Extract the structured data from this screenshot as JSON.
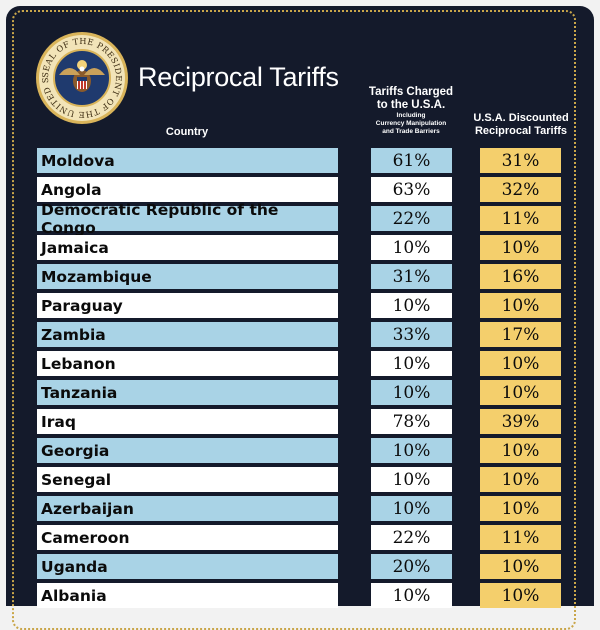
{
  "title": "Reciprocal Tariffs",
  "seal": {
    "text": "SEAL OF THE PRESIDENT OF THE UNITED STATES"
  },
  "headers": {
    "country": "Country",
    "charged_line1": "Tariffs Charged",
    "charged_line2": "to the U.S.A.",
    "charged_note1": "Including",
    "charged_note2": "Currency Manipulation",
    "charged_note3": "and Trade Barriers",
    "discounted_line1": "U.S.A. Discounted",
    "discounted_line2": "Reciprocal Tariffs"
  },
  "colors": {
    "background": "#141a2b",
    "row_blue": "#a9d3e6",
    "row_white": "#ffffff",
    "discount_gold": "#f4cf6c",
    "border_gold": "#c9a64a"
  },
  "rows": [
    {
      "country": "Moldova",
      "charged": "61%",
      "discounted": "31%",
      "style": "blue"
    },
    {
      "country": "Angola",
      "charged": "63%",
      "discounted": "32%",
      "style": "white"
    },
    {
      "country": "Democratic Republic of the Congo",
      "charged": "22%",
      "discounted": "11%",
      "style": "blue"
    },
    {
      "country": "Jamaica",
      "charged": "10%",
      "discounted": "10%",
      "style": "white"
    },
    {
      "country": "Mozambique",
      "charged": "31%",
      "discounted": "16%",
      "style": "blue"
    },
    {
      "country": "Paraguay",
      "charged": "10%",
      "discounted": "10%",
      "style": "white"
    },
    {
      "country": "Zambia",
      "charged": "33%",
      "discounted": "17%",
      "style": "blue"
    },
    {
      "country": "Lebanon",
      "charged": "10%",
      "discounted": "10%",
      "style": "white"
    },
    {
      "country": "Tanzania",
      "charged": "10%",
      "discounted": "10%",
      "style": "blue"
    },
    {
      "country": "Iraq",
      "charged": "78%",
      "discounted": "39%",
      "style": "white"
    },
    {
      "country": "Georgia",
      "charged": "10%",
      "discounted": "10%",
      "style": "blue"
    },
    {
      "country": "Senegal",
      "charged": "10%",
      "discounted": "10%",
      "style": "white"
    },
    {
      "country": "Azerbaijan",
      "charged": "10%",
      "discounted": "10%",
      "style": "blue"
    },
    {
      "country": "Cameroon",
      "charged": "22%",
      "discounted": "11%",
      "style": "white"
    },
    {
      "country": "Uganda",
      "charged": "20%",
      "discounted": "10%",
      "style": "blue"
    },
    {
      "country": "Albania",
      "charged": "10%",
      "discounted": "10%",
      "style": "white"
    }
  ]
}
